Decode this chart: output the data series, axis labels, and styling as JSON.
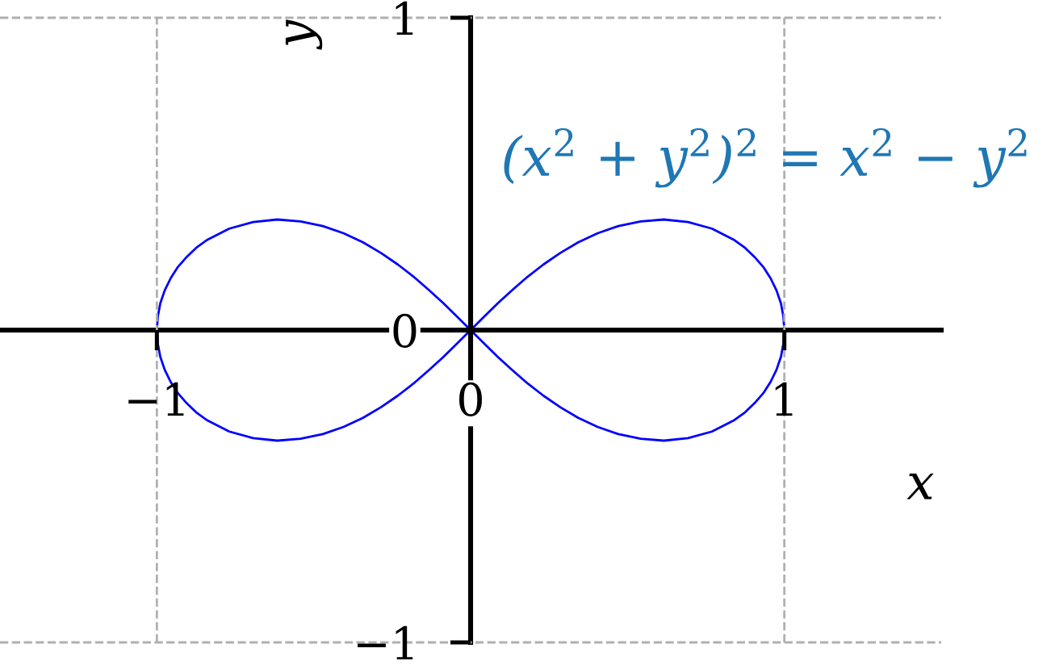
{
  "chart_data": {
    "type": "line",
    "xlabel": "x",
    "ylabel": "y",
    "annotations": [
      "(x$^{2}$ + y$^{2}$)$^{2}$ = x$^{2}$ − y$^{2}$"
    ],
    "x": [
      -1,
      -0.997,
      -0.989,
      -0.975,
      -0.956,
      -0.933,
      -0.905,
      -0.875,
      -0.841,
      -0.769,
      -0.693,
      -0.616,
      -0.542,
      -0.471,
      -0.405,
      -0.343,
      -0.286,
      -0.232,
      -0.182,
      -0.134,
      -0.088,
      -0.044,
      0,
      0.044,
      0.088,
      0.134,
      0.182,
      0.232,
      0.286,
      0.343,
      0.405,
      0.471,
      0.542,
      0.616,
      0.693,
      0.769,
      0.841,
      0.875,
      0.905,
      0.933,
      0.956,
      0.975,
      0.989,
      0.997,
      1
    ],
    "series": [
      {
        "color": "#0000ff",
        "values": [
          0,
          0.043,
          0.086,
          0.127,
          0.166,
          0.202,
          0.234,
          0.263,
          0.288,
          0.325,
          0.346,
          0.354,
          0.348,
          0.333,
          0.31,
          0.281,
          0.247,
          0.21,
          0.171,
          0.129,
          0.087,
          0.044,
          0,
          -0.044,
          -0.087,
          -0.129,
          -0.171,
          -0.21,
          -0.247,
          -0.281,
          -0.31,
          -0.333,
          -0.348,
          -0.354,
          -0.346,
          -0.325,
          -0.288,
          -0.263,
          -0.234,
          -0.202,
          -0.166,
          -0.127,
          -0.086,
          -0.043,
          0
        ]
      },
      {
        "color": "#0000ff",
        "values": [
          0,
          -0.043,
          -0.086,
          -0.127,
          -0.166,
          -0.202,
          -0.234,
          -0.263,
          -0.288,
          -0.325,
          -0.346,
          -0.354,
          -0.348,
          -0.333,
          -0.31,
          -0.281,
          -0.247,
          -0.21,
          -0.171,
          -0.129,
          -0.087,
          -0.044,
          0,
          0.044,
          0.087,
          0.129,
          0.171,
          0.21,
          0.247,
          0.281,
          0.31,
          0.333,
          0.348,
          0.354,
          0.346,
          0.325,
          0.288,
          0.263,
          0.234,
          0.202,
          0.166,
          0.127,
          0.086,
          0.043,
          0
        ]
      }
    ],
    "xlim": [
      -1.5,
      1.5
    ],
    "ylim": [
      -1,
      1
    ],
    "xticks": [
      {
        "value": -1,
        "label": "−1"
      },
      0,
      1
    ],
    "yticks": [
      {
        "value": -1,
        "label": "−1"
      },
      0,
      1
    ],
    "grid": true
  }
}
